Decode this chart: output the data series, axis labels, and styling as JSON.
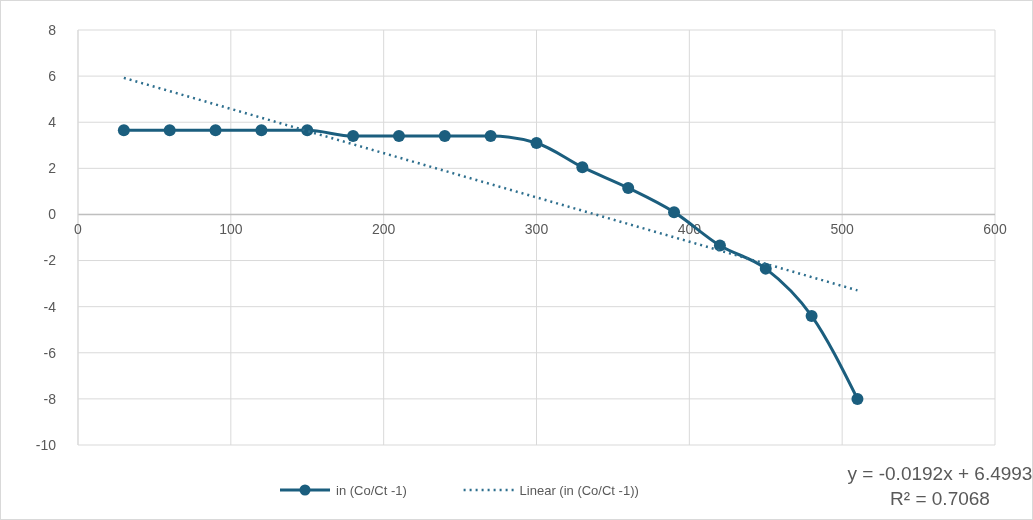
{
  "chart_data": {
    "type": "line",
    "x": [
      30,
      60,
      90,
      120,
      150,
      180,
      210,
      240,
      270,
      300,
      330,
      360,
      390,
      420,
      450,
      480,
      510
    ],
    "series": [
      {
        "name": "in (Co/Ct -1)",
        "color": "#1b5e7e",
        "values": [
          3.65,
          3.65,
          3.65,
          3.65,
          3.65,
          3.4,
          3.4,
          3.4,
          3.4,
          3.1,
          2.05,
          1.15,
          0.1,
          -1.35,
          -2.35,
          -4.4,
          -8.0
        ],
        "marker": "circle",
        "line_style": "solid"
      },
      {
        "name": "Linear (in (Co/Ct -1))",
        "type": "line",
        "color": "#2e6f8e",
        "x": [
          30,
          510
        ],
        "values": [
          5.923,
          -3.293
        ],
        "marker": "none",
        "line_style": "dotted"
      }
    ],
    "xlim": [
      0,
      600
    ],
    "xticks": [
      0,
      100,
      200,
      300,
      400,
      500,
      600
    ],
    "ylim": [
      -10,
      8
    ],
    "yticks": [
      -10,
      -8,
      -6,
      -4,
      -2,
      0,
      2,
      4,
      6,
      8
    ],
    "grid": true,
    "legend": "bottom",
    "annotations": [
      "y = -0.0192x + 6.4993",
      "R² = 0.7068"
    ]
  }
}
